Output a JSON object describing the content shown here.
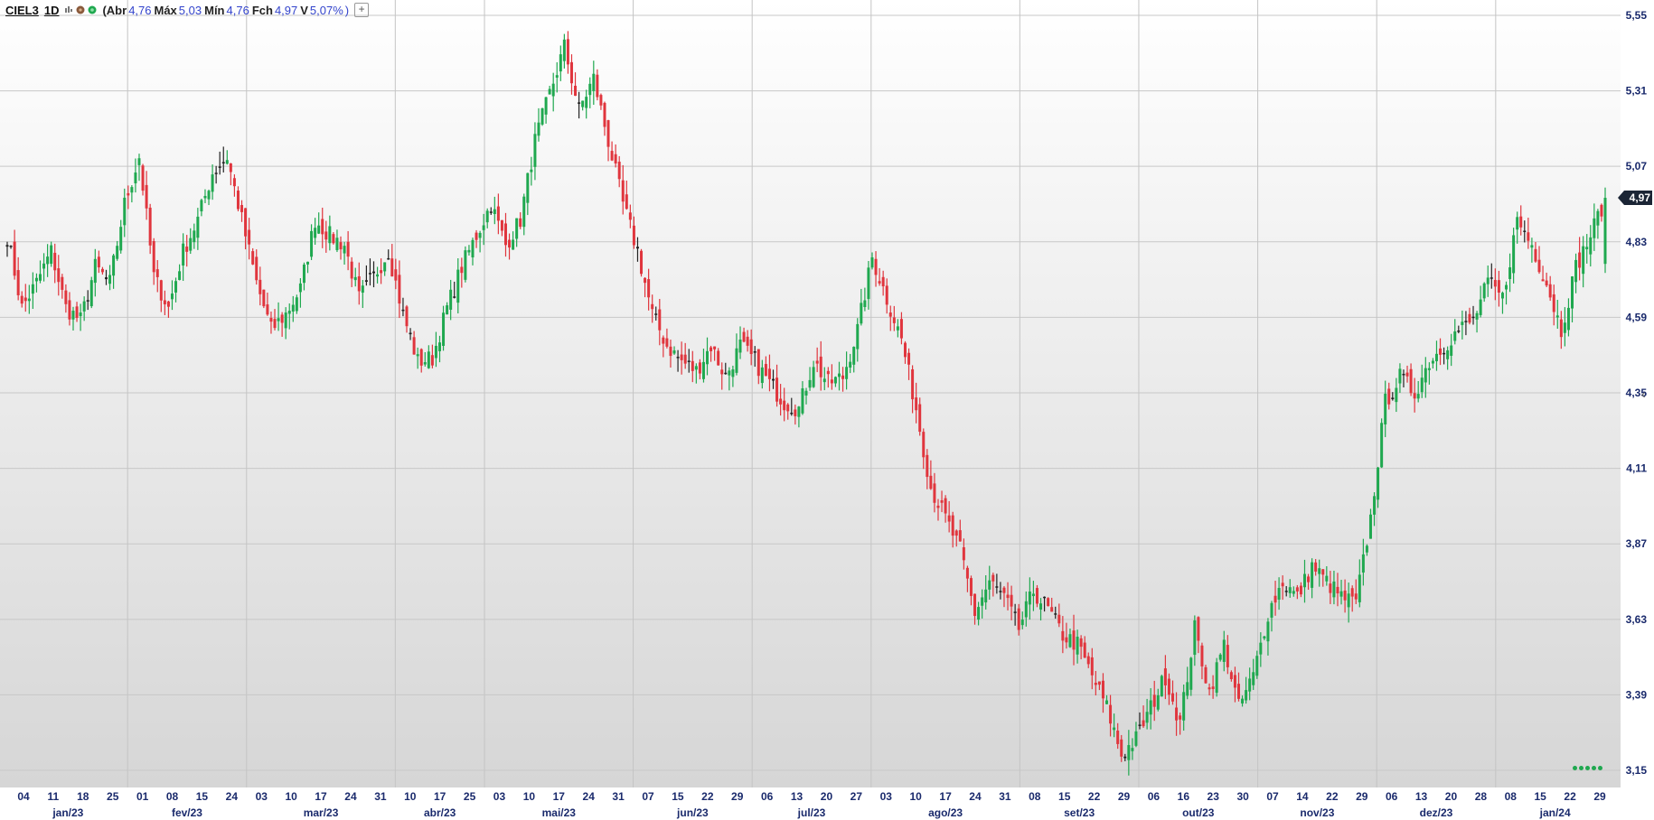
{
  "header": {
    "symbol": "CIEL3",
    "timeframe": "1D",
    "ohlc_open_prefix": "(Abr",
    "open_label": "Abr",
    "open": "4,76",
    "high_label": "Máx",
    "high": "5,03",
    "low_label": "Mín",
    "low": "4,76",
    "close_label": "Fch",
    "close": "4,97",
    "change_label": "V",
    "change": "5,07%",
    "change_suffix": ")",
    "add_button": "+",
    "icons": [
      "bar-type-icon",
      "indicator-brown-icon",
      "indicator-green-icon"
    ]
  },
  "colors": {
    "up": "#1fa84f",
    "down": "#e0353d",
    "doji": "#222222",
    "axis_text": "#1a2a6c",
    "price_badge": "#1b2535"
  },
  "chart_data": {
    "type": "candlestick",
    "title": "",
    "xlabel": "",
    "ylabel": "",
    "ylim": [
      3.13,
      5.57
    ],
    "y_ticks": [
      "5,55",
      "5,31",
      "5,07",
      "4,83",
      "4,59",
      "4,35",
      "4,11",
      "3,87",
      "3,63",
      "3,39",
      "3,15"
    ],
    "y_tick_values": [
      5.55,
      5.31,
      5.07,
      4.83,
      4.59,
      4.35,
      4.11,
      3.87,
      3.63,
      3.39,
      3.15
    ],
    "last_price_label": "4,97",
    "last_price": 4.97,
    "x_day_ticks": [
      "04",
      "11",
      "18",
      "25",
      "01",
      "08",
      "15",
      "24",
      "03",
      "10",
      "17",
      "24",
      "31",
      "10",
      "17",
      "25",
      "03",
      "10",
      "17",
      "24",
      "31",
      "07",
      "15",
      "22",
      "29",
      "06",
      "13",
      "20",
      "27",
      "03",
      "10",
      "17",
      "24",
      "31",
      "08",
      "15",
      "22",
      "29",
      "06",
      "16",
      "23",
      "30",
      "07",
      "14",
      "22",
      "29",
      "06",
      "13",
      "20",
      "28",
      "08",
      "15",
      "22",
      "29"
    ],
    "x_month_labels": [
      {
        "label": "jan/23",
        "tick": 0
      },
      {
        "label": "fev/23",
        "tick": 4
      },
      {
        "label": "mar/23",
        "tick": 8
      },
      {
        "label": "abr/23",
        "tick": 13
      },
      {
        "label": "mai/23",
        "tick": 16
      },
      {
        "label": "jun/23",
        "tick": 21
      },
      {
        "label": "jul/23",
        "tick": 25
      },
      {
        "label": "ago/23",
        "tick": 29
      },
      {
        "label": "set/23",
        "tick": 34
      },
      {
        "label": "out/23",
        "tick": 38
      },
      {
        "label": "nov/23",
        "tick": 42
      },
      {
        "label": "dez/23",
        "tick": 46
      },
      {
        "label": "jan/24",
        "tick": 50
      }
    ],
    "close_path": [
      4.85,
      4.62,
      4.7,
      4.8,
      4.62,
      4.58,
      4.75,
      4.7,
      4.95,
      5.1,
      4.72,
      4.62,
      4.8,
      4.9,
      5.05,
      5.1,
      4.9,
      4.7,
      4.55,
      4.6,
      4.68,
      4.9,
      4.85,
      4.82,
      4.65,
      4.72,
      4.8,
      4.6,
      4.45,
      4.46,
      4.62,
      4.75,
      4.85,
      4.95,
      4.82,
      4.9,
      5.15,
      5.3,
      5.45,
      5.25,
      5.35,
      5.15,
      4.95,
      4.8,
      4.6,
      4.5,
      4.45,
      4.42,
      4.5,
      4.4,
      4.5,
      4.45,
      4.38,
      4.32,
      4.3,
      4.45,
      4.38,
      4.4,
      4.55,
      4.78,
      4.65,
      4.52,
      4.3,
      4.05,
      3.95,
      3.85,
      3.65,
      3.75,
      3.7,
      3.6,
      3.72,
      3.66,
      3.58,
      3.55,
      3.45,
      3.35,
      3.2,
      3.25,
      3.35,
      3.45,
      3.3,
      3.6,
      3.4,
      3.55,
      3.35,
      3.45,
      3.65,
      3.75,
      3.7,
      3.8,
      3.75,
      3.7,
      3.68,
      3.95,
      4.32,
      4.4,
      4.35,
      4.45,
      4.5,
      4.55,
      4.58,
      4.7,
      4.65,
      4.9,
      4.82,
      4.7,
      4.55,
      4.75,
      4.85,
      4.97
    ],
    "series_count": 1
  }
}
